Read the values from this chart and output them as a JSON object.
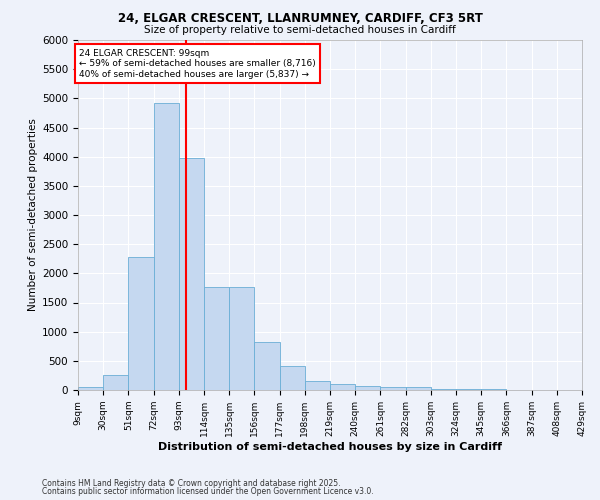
{
  "title1": "24, ELGAR CRESCENT, LLANRUMNEY, CARDIFF, CF3 5RT",
  "title2": "Size of property relative to semi-detached houses in Cardiff",
  "xlabel": "Distribution of semi-detached houses by size in Cardiff",
  "ylabel": "Number of semi-detached properties",
  "footnote1": "Contains HM Land Registry data © Crown copyright and database right 2025.",
  "footnote2": "Contains public sector information licensed under the Open Government Licence v3.0.",
  "annotation_title": "24 ELGAR CRESCENT: 99sqm",
  "annotation_line1": "← 59% of semi-detached houses are smaller (8,716)",
  "annotation_line2": "40% of semi-detached houses are larger (5,837) →",
  "bin_labels": [
    "9sqm",
    "30sqm",
    "51sqm",
    "72sqm",
    "93sqm",
    "114sqm",
    "135sqm",
    "156sqm",
    "177sqm",
    "198sqm",
    "219sqm",
    "240sqm",
    "261sqm",
    "282sqm",
    "303sqm",
    "324sqm",
    "345sqm",
    "366sqm",
    "387sqm",
    "408sqm",
    "429sqm"
  ],
  "bin_edges": [
    9,
    30,
    51,
    72,
    93,
    114,
    135,
    156,
    177,
    198,
    219,
    240,
    261,
    282,
    303,
    324,
    345,
    366,
    387,
    408,
    429
  ],
  "bar_values": [
    50,
    250,
    2280,
    4920,
    3980,
    1760,
    1760,
    830,
    410,
    160,
    95,
    65,
    55,
    45,
    25,
    15,
    10,
    8,
    5,
    3
  ],
  "bar_color": "#c5d8f0",
  "bar_edge_color": "#6aaed6",
  "vline_color": "red",
  "background_color": "#eef2fa",
  "grid_color": "white",
  "ylim": [
    0,
    6000
  ],
  "yticks": [
    0,
    500,
    1000,
    1500,
    2000,
    2500,
    3000,
    3500,
    4000,
    4500,
    5000,
    5500,
    6000
  ]
}
